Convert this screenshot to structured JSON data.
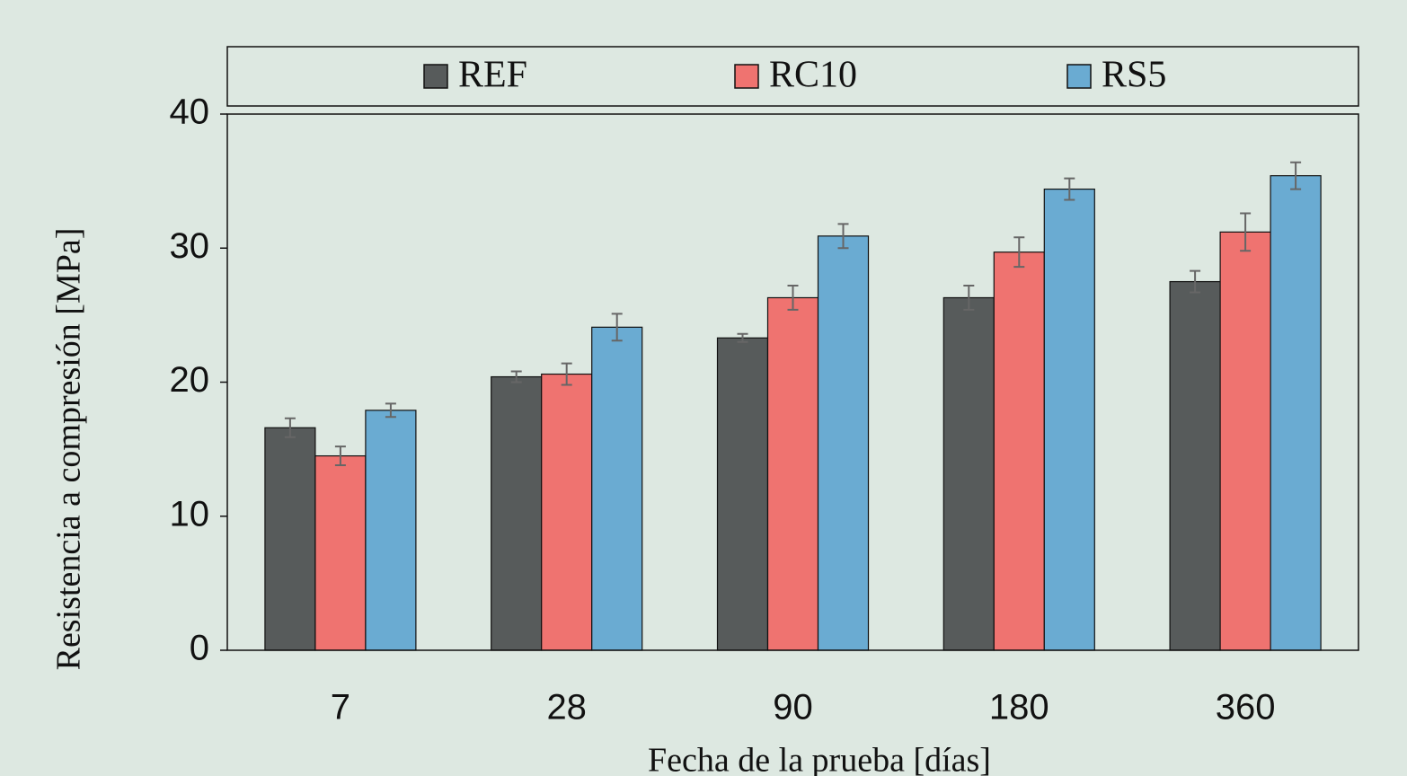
{
  "chart_data": {
    "type": "bar",
    "x_label": "Fecha de la prueba [días]",
    "y_label": "Resistencia a compresión [MPa]",
    "categories": [
      "7",
      "28",
      "90",
      "180",
      "360"
    ],
    "series": [
      {
        "name": "REF",
        "color": "#575b5b",
        "values": [
          16.6,
          20.4,
          23.3,
          26.3,
          27.5
        ],
        "errors": [
          0.7,
          0.4,
          0.3,
          0.9,
          0.8
        ]
      },
      {
        "name": "RC10",
        "color": "#ef7370",
        "values": [
          14.5,
          20.6,
          26.3,
          29.7,
          31.2
        ],
        "errors": [
          0.7,
          0.8,
          0.9,
          1.1,
          1.4
        ]
      },
      {
        "name": "RS5",
        "color": "#6aabd2",
        "values": [
          17.9,
          24.1,
          30.9,
          34.4,
          35.4
        ],
        "errors": [
          0.5,
          1.0,
          0.9,
          0.8,
          1.0
        ]
      }
    ],
    "ylim": [
      0,
      40
    ],
    "yticks": [
      0,
      10,
      20,
      30,
      40
    ],
    "legend": "top"
  }
}
